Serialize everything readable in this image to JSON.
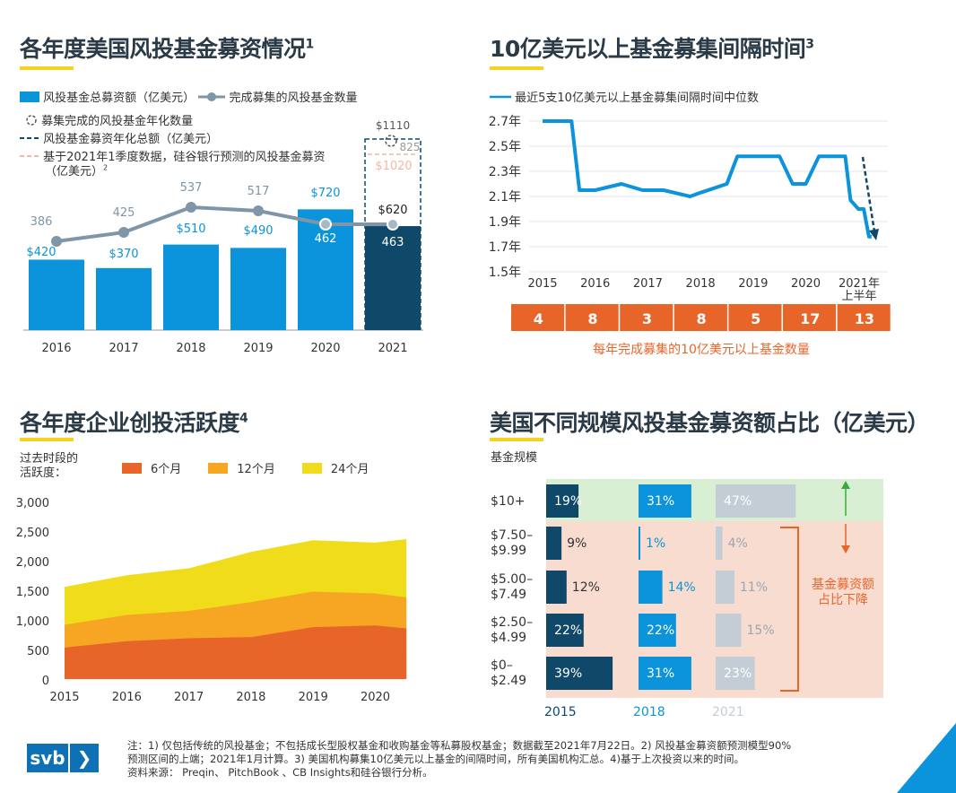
{
  "panel1": {
    "title": "各年度美国风投基金募资情况",
    "title_sup": "1",
    "legend": {
      "bar": "风投基金总募资额（亿美元）",
      "line": "完成募集的风投基金数量",
      "annualized_count": "募集完成的风投基金年化数量",
      "annualized_amount": "风投基金募资年化总额（亿美元）",
      "forecast_line1": "基于2021年1季度数据，硅谷银行预测的风投基金募资",
      "forecast_line2": "（亿美元）",
      "forecast_sup": "2"
    },
    "extra_labels": {
      "annualized_amount": "$1110",
      "annualized_count": "825",
      "forecast": "$1020"
    }
  },
  "panel2": {
    "title": "10亿美元以上基金募集间隔时间",
    "title_sup": "3",
    "legend": "最近5支10亿美元以上基金募集间隔时间中位数",
    "counts_label": "每年完成募集的10亿美元以上基金数量",
    "x_last_line2": "上半年"
  },
  "panel3": {
    "title": "各年度企业创投活跃度",
    "title_sup": "4",
    "ylabel_line1": "过去时段的",
    "ylabel_line2": "活跃度："
  },
  "panel4": {
    "title": "美国不同规模风投基金募资额占比（亿美元）",
    "row_header": "基金规模",
    "annotation_line1": "基金募资额",
    "annotation_line2": "占比下降"
  },
  "footer": {
    "logo_text": "svb",
    "logo_arrow": "❯",
    "note_line1": "注：1) 仅包括传统的风投基金；不包括成长型股权基金和收购基金等私募股权基金；数据截至2021年7月22日。2) 风投基金募资额预测模型90%",
    "note_line2": "预测区间的上端；2021年1月计算。3) 美国机构募集10亿美元以上基金的间隔时间，所有美国机构汇总。4)基于上次投资以来的时间。",
    "note_line3": "资料来源： Preqin、 PitchBook 、CB Insights和硅谷银行分析。"
  },
  "colors": {
    "blue": "#0b93dc",
    "navy": "#0f4868",
    "gray_line": "#7f96a8",
    "orange": "#e8652a",
    "amber": "#f6a623",
    "yellow": "#f0dc1a",
    "peach": "#f8dcd0",
    "green": "#d8efd3",
    "light_gray": "#c4cdd6"
  },
  "chart_data": [
    {
      "type": "bar",
      "categories": [
        "2016",
        "2017",
        "2018",
        "2019",
        "2020",
        "2021"
      ],
      "series": [
        {
          "name": "风投基金总募资额（亿美元）",
          "values": [
            420,
            370,
            510,
            490,
            720,
            620
          ],
          "labels": [
            "$420",
            "$370",
            "$510",
            "$490",
            "$720",
            "$620"
          ]
        },
        {
          "name": "完成募集的风投基金数量",
          "values": [
            386,
            425,
            537,
            517,
            462,
            463
          ]
        }
      ],
      "ylim": [
        0,
        1150
      ]
    },
    {
      "type": "line",
      "x_ticks": [
        "2015",
        "2016",
        "2017",
        "2018",
        "2019",
        "2020",
        "2021年"
      ],
      "y_ticks": [
        "2.7年",
        "2.5年",
        "2.3年",
        "2.1年",
        "1.9年",
        "1.7年",
        "1.5年"
      ],
      "ylim": [
        1.5,
        2.7
      ],
      "series": [
        {
          "name": "最近5支10亿美元以上基金募集间隔时间中位数",
          "x": [
            2015,
            2015.55,
            2015.7,
            2016.0,
            2016.5,
            2016.9,
            2017.3,
            2017.8,
            2018.0,
            2018.5,
            2018.7,
            2019.0,
            2019.5,
            2019.75,
            2020.0,
            2020.25,
            2020.5,
            2020.75,
            2020.85,
            2021.0,
            2021.1,
            2021.2,
            2021.25
          ],
          "y": [
            2.7,
            2.7,
            2.15,
            2.15,
            2.2,
            2.15,
            2.15,
            2.1,
            2.13,
            2.2,
            2.42,
            2.42,
            2.42,
            2.2,
            2.2,
            2.42,
            2.42,
            2.42,
            2.07,
            2.0,
            2.0,
            1.78,
            1.78
          ]
        }
      ],
      "counts": {
        "categories": [
          "2015",
          "2016",
          "2017",
          "2018",
          "2019",
          "2020",
          "2021年上半年"
        ],
        "values": [
          4,
          8,
          3,
          8,
          5,
          17,
          13
        ]
      }
    },
    {
      "type": "area",
      "x": [
        2015,
        2016,
        2017,
        2018,
        2019,
        2020,
        2020.5
      ],
      "x_ticks": [
        "2015",
        "2016",
        "2017",
        "2018",
        "2019",
        "2020"
      ],
      "y_ticks": [
        "3,000",
        "2,500",
        "2,000",
        "1,500",
        "1,000",
        "500",
        "0"
      ],
      "ylim": [
        0,
        3000
      ],
      "series": [
        {
          "name": "6个月",
          "values": [
            540,
            650,
            700,
            720,
            890,
            920,
            870
          ]
        },
        {
          "name": "12个月",
          "values": [
            930,
            1100,
            1170,
            1320,
            1500,
            1470,
            1400
          ]
        },
        {
          "name": "24个月",
          "values": [
            1580,
            1780,
            1900,
            2180,
            2380,
            2340,
            2400
          ]
        }
      ]
    },
    {
      "type": "bar",
      "categories": [
        "$10+",
        "$7.50–\n$9.99",
        "$5.00–\n$7.49",
        "$2.50–\n$4.99",
        "$0–\n$2.49"
      ],
      "series": [
        {
          "name": "2015",
          "values": [
            19,
            9,
            12,
            22,
            39
          ]
        },
        {
          "name": "2018",
          "values": [
            31,
            1,
            14,
            22,
            31
          ]
        },
        {
          "name": "2021",
          "values": [
            47,
            4,
            11,
            15,
            23
          ]
        }
      ]
    }
  ]
}
